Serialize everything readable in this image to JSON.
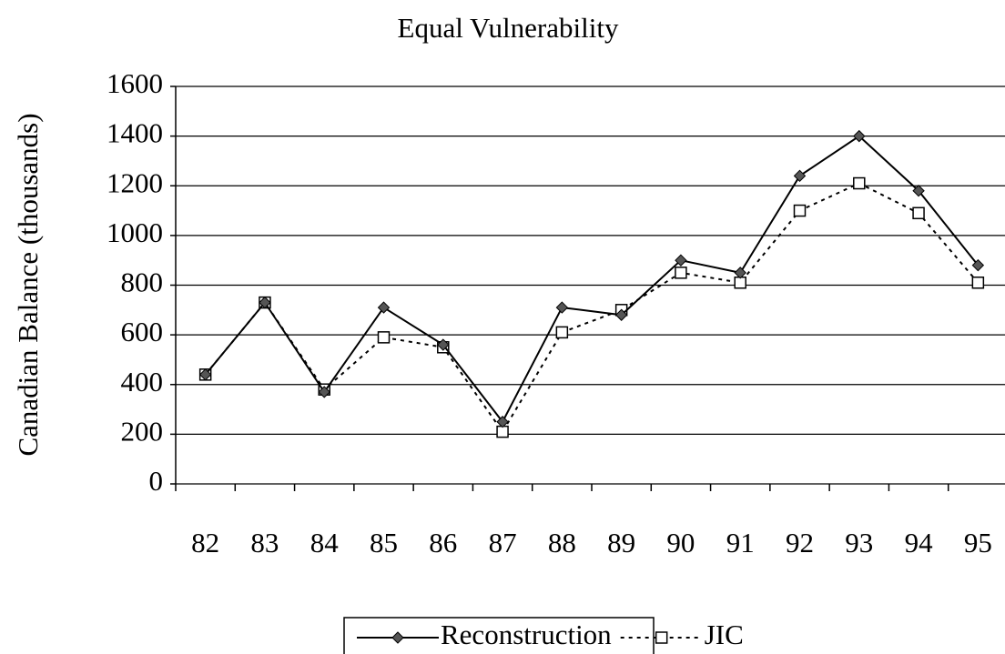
{
  "chart_data": {
    "type": "line",
    "title": "Equal Vulnerability",
    "y_label": "Canadian Balance (thousands)",
    "categories": [
      "82",
      "83",
      "84",
      "85",
      "86",
      "87",
      "88",
      "89",
      "90",
      "91",
      "92",
      "93",
      "94",
      "95"
    ],
    "series": [
      {
        "name": "Reconstruction",
        "color": "#000000",
        "line_style": "solid",
        "marker": "diamond",
        "values": [
          440,
          730,
          370,
          710,
          560,
          250,
          710,
          680,
          900,
          850,
          1240,
          1400,
          1180,
          880
        ]
      },
      {
        "name": "JIC",
        "color": "#000000",
        "line_style": "dashed",
        "marker": "square",
        "values": [
          440,
          730,
          380,
          590,
          550,
          210,
          610,
          700,
          850,
          810,
          1100,
          1210,
          1090,
          810
        ]
      }
    ],
    "ylim": [
      0,
      1600
    ],
    "yticks": [
      0,
      200,
      400,
      600,
      800,
      1000,
      1200,
      1400,
      1600
    ],
    "grid": true
  }
}
